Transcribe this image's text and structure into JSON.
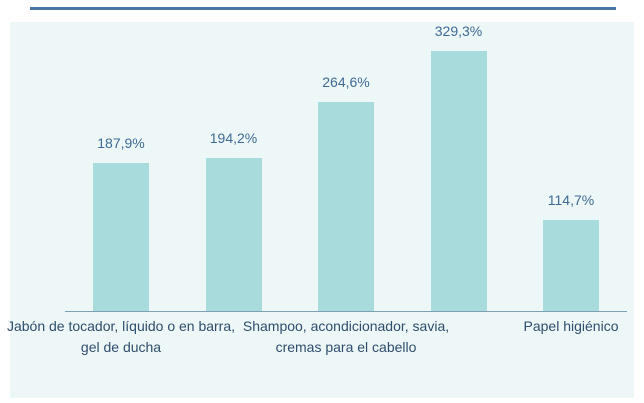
{
  "chart_data": {
    "type": "bar",
    "categories": [
      "Jabón de tocador, líquido o en barra, gel de ducha",
      null,
      "Shampoo, acondicionador, savia, cremas para el cabello",
      null,
      "Papel higiénico"
    ],
    "values": [
      187.9,
      194.2,
      264.6,
      329.3,
      114.7
    ],
    "value_labels": [
      "187,9%",
      "194,2%",
      "264,6%",
      "329,3%",
      "114,7%"
    ],
    "color": "#a8dbdb"
  }
}
